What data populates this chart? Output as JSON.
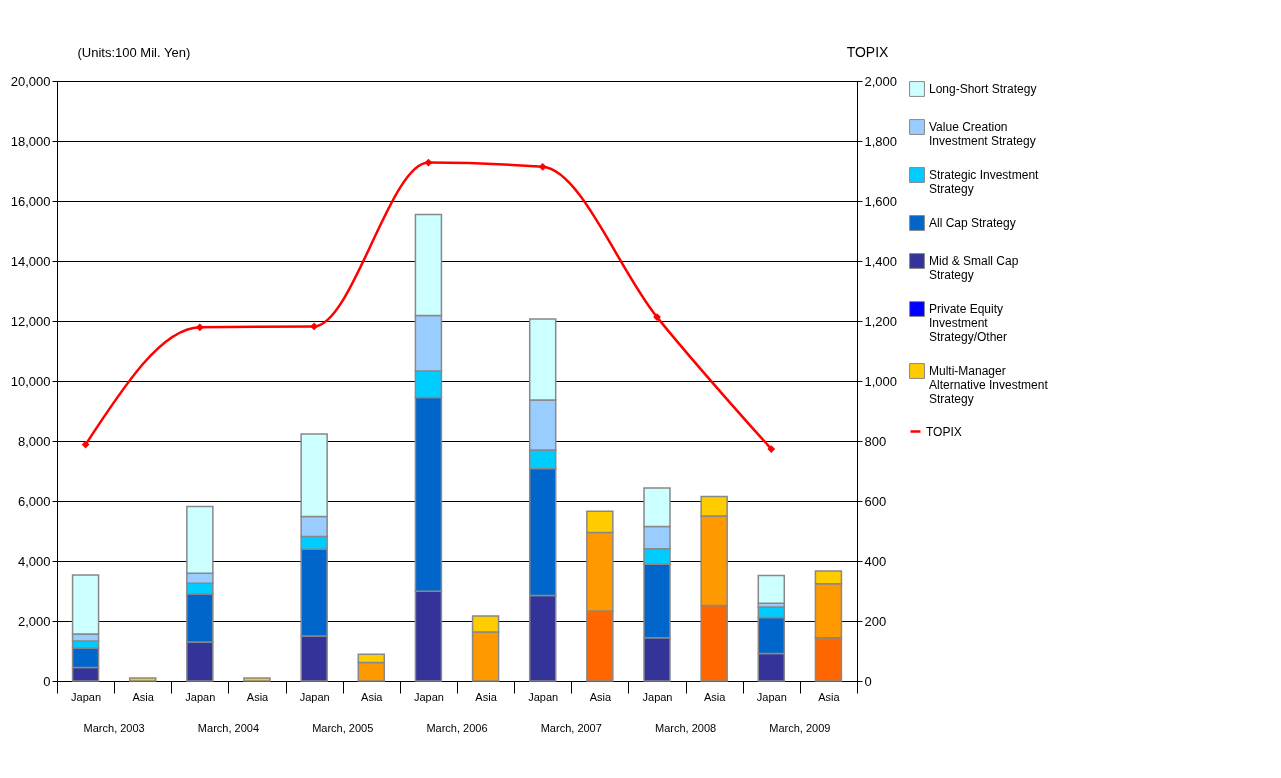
{
  "chart_data": {
    "type": "bar",
    "stacked": true,
    "ylabel": "(Units:100 Mil. Yen)",
    "y2label": "TOPIX",
    "categories": [
      "Japan",
      "Asia",
      "Japan",
      "Asia",
      "Japan",
      "Asia",
      "Japan",
      "Asia",
      "Japan",
      "Asia",
      "Japan",
      "Asia",
      "Japan",
      "Asia"
    ],
    "annotations": [
      "March, 2003",
      "March, 2004",
      "March, 2005",
      "March, 2006",
      "March, 2007",
      "March, 2008",
      "March, 2009"
    ],
    "series": [
      {
        "color": "#ff6600",
        "values": [
          null,
          null,
          null,
          null,
          null,
          null,
          null,
          null,
          null,
          2330,
          null,
          2520,
          null,
          1440
        ]
      },
      {
        "color": "#ff9900",
        "values": [
          null,
          null,
          null,
          null,
          null,
          620,
          null,
          1630,
          null,
          2620,
          null,
          2980,
          null,
          1800
        ]
      },
      {
        "name": "Multi-Manager Alternative Investment Strategy",
        "color": "#ffcc00",
        "values": [
          null,
          100,
          null,
          100,
          null,
          270,
          null,
          540,
          null,
          710,
          null,
          650,
          null,
          430
        ]
      },
      {
        "name": "Private Equity Investment Strategy/Other",
        "color": "#0000ff",
        "values": [
          null,
          null,
          null,
          null,
          null,
          null,
          null,
          null,
          null,
          null,
          null,
          null,
          null,
          null
        ]
      },
      {
        "name": "Mid & Small Cap Strategy",
        "color": "#333399",
        "values": [
          450,
          null,
          1300,
          null,
          1500,
          null,
          2990,
          null,
          2850,
          null,
          1440,
          null,
          920,
          null
        ]
      },
      {
        "name": "All Cap Strategy",
        "color": "#0066cc",
        "values": [
          650,
          null,
          1600,
          null,
          2890,
          null,
          6460,
          null,
          4230,
          null,
          2450,
          null,
          1200,
          null
        ]
      },
      {
        "name": "Strategic Investment Strategy",
        "color": "#00ccff",
        "values": [
          230,
          null,
          360,
          null,
          430,
          null,
          880,
          null,
          620,
          null,
          520,
          null,
          350,
          null
        ]
      },
      {
        "name": "Value Creation Investment Strategy",
        "color": "#99ccff",
        "values": [
          240,
          null,
          330,
          null,
          660,
          null,
          1850,
          null,
          1670,
          null,
          740,
          null,
          120,
          null
        ]
      },
      {
        "name": "Long-Short Strategy",
        "color": "#ccffff",
        "values": [
          1960,
          null,
          2230,
          null,
          2750,
          null,
          3370,
          null,
          2700,
          null,
          1280,
          null,
          930,
          null
        ]
      },
      {
        "name": "TOPIX",
        "type": "line",
        "axis": "y2",
        "color": "#ff0000",
        "marker": "diamond",
        "values": [
          788,
          null,
          1179,
          null,
          1182,
          null,
          1728,
          null,
          1714,
          null,
          1213,
          null,
          773,
          null
        ]
      }
    ],
    "ylim": [
      0,
      20000
    ],
    "yticks": [
      0,
      {
        "value": 2000,
        "label": "2,000"
      },
      {
        "value": 4000,
        "label": "4,000"
      },
      {
        "value": 6000,
        "label": "6,000"
      },
      {
        "value": 8000,
        "label": "8,000"
      },
      {
        "value": 10000,
        "label": "10,000"
      },
      {
        "value": 12000,
        "label": "12,000"
      },
      {
        "value": 14000,
        "label": "14,000"
      },
      {
        "value": 16000,
        "label": "16,000"
      },
      {
        "value": 18000,
        "label": "18,000"
      },
      {
        "value": 20000,
        "label": "20,000"
      }
    ],
    "y2lim": [
      0,
      2000
    ],
    "y2ticks": [
      0,
      200,
      400,
      600,
      800,
      {
        "value": 1000,
        "label": "1,000"
      },
      {
        "value": 1200,
        "label": "1,200"
      },
      {
        "value": 1400,
        "label": "1,400"
      },
      {
        "value": 1600,
        "label": "1,600"
      },
      {
        "value": 1800,
        "label": "1,800"
      },
      {
        "value": 2000,
        "label": "2,000"
      }
    ],
    "grid": "y",
    "legend": "right"
  }
}
